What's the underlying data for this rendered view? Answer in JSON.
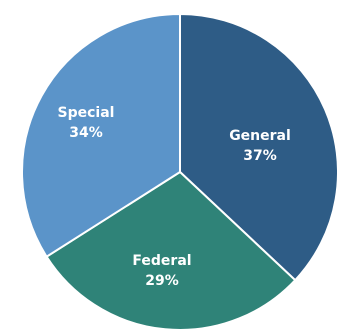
{
  "chart_data": {
    "type": "pie",
    "title": "",
    "slices": [
      {
        "label": "General",
        "value": 37,
        "display": "37%",
        "color": "#2e5c86"
      },
      {
        "label": "Federal",
        "value": 29,
        "display": "29%",
        "color": "#2f8378"
      },
      {
        "label": "Special",
        "value": 34,
        "display": "34%",
        "color": "#5b94c9"
      }
    ],
    "start": "12 o'clock",
    "direction": "clockwise",
    "legend": "none"
  }
}
